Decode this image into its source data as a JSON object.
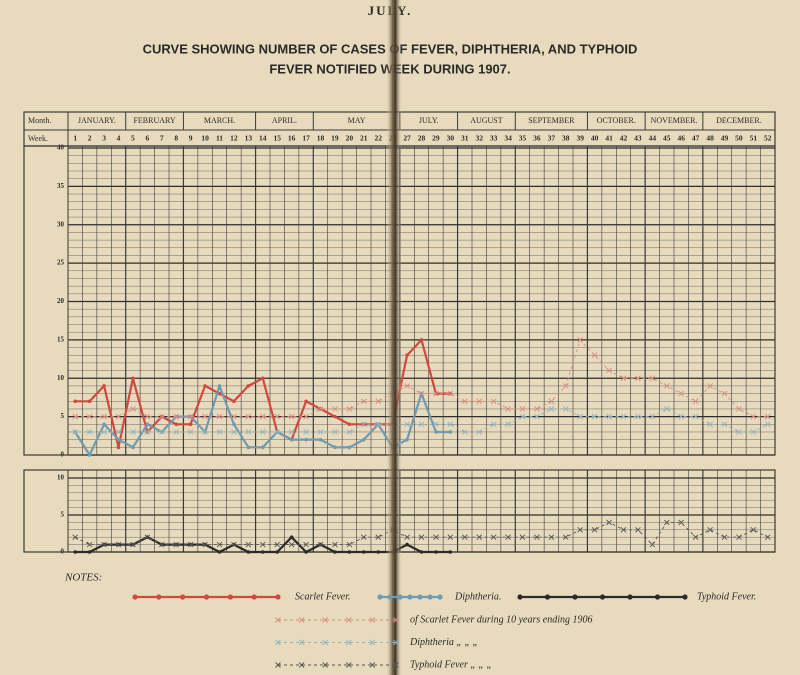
{
  "page_header": "JULY.",
  "notes_label": "NOTES:",
  "month_label": "Month.",
  "week_label": "Week.",
  "calendar": {
    "months": [
      {
        "label": "JANUARY.",
        "weeks": [
          1,
          2,
          3,
          4
        ]
      },
      {
        "label": "FEBRUARY",
        "weeks": [
          5,
          6,
          7,
          8
        ]
      },
      {
        "label": "MARCH.",
        "weeks": [
          9,
          10,
          11,
          12,
          13
        ]
      },
      {
        "label": "APRIL.",
        "weeks": [
          14,
          15,
          16,
          17
        ]
      },
      {
        "label": "MAY",
        "weeks": [
          18,
          19,
          20,
          21,
          22,
          23
        ]
      },
      {
        "label": "JULY.",
        "weeks": [
          27,
          28,
          29,
          30
        ]
      },
      {
        "label": "AUGUST",
        "weeks": [
          31,
          32,
          33,
          34
        ]
      },
      {
        "label": "SEPTEMBER",
        "weeks": [
          35,
          36,
          37,
          38,
          39
        ]
      },
      {
        "label": "OCTOBER.",
        "weeks": [
          40,
          41,
          42,
          43
        ]
      },
      {
        "label": "NOVEMBER.",
        "weeks": [
          44,
          45,
          46,
          47
        ]
      },
      {
        "label": "DECEMBER.",
        "weeks": [
          48,
          49,
          50,
          51,
          52
        ]
      }
    ]
  },
  "chart_data": [
    {
      "type": "line",
      "title": [
        "CURVE SHOWING NUMBER OF CASES OF FEVER, DIPHTHERIA, AND TYPHOID",
        "FEVER NOTIFIED WEEK DURING 1907."
      ],
      "ylim": [
        0,
        40
      ],
      "yticks": [
        0,
        5,
        10,
        15,
        20,
        25,
        30,
        35,
        40
      ],
      "series": [
        {
          "name": "Scarlet Fever.",
          "color": "#d2483f",
          "style": "solid",
          "values": [
            7,
            7,
            9,
            1,
            10,
            3,
            5,
            4,
            4,
            9,
            8,
            7,
            9,
            10,
            3,
            2,
            7,
            6,
            5,
            4,
            4,
            4,
            4,
            13,
            15,
            8,
            8,
            null,
            null,
            null,
            null,
            null,
            null,
            null,
            null,
            null,
            null,
            null,
            null,
            null,
            null,
            null,
            null,
            null,
            null,
            null,
            null,
            null,
            null
          ]
        },
        {
          "name": "Diphtheria.",
          "color": "#6f9bb0",
          "style": "solid",
          "values": [
            3,
            0,
            4,
            2,
            1,
            4,
            3,
            5,
            5,
            3,
            9,
            4,
            1,
            1,
            3,
            2,
            2,
            2,
            1,
            1,
            2,
            4,
            1,
            2,
            8,
            3,
            3,
            null,
            null,
            null,
            null,
            null,
            null,
            null,
            null,
            null,
            null,
            null,
            null,
            null,
            null,
            null,
            null,
            null,
            null,
            null,
            null,
            null,
            null
          ]
        },
        {
          "name": "of Scarlet Fever during 10 years ending 1906",
          "color": "#d98a80",
          "style": "dashed",
          "values": [
            5,
            5,
            5,
            5,
            6,
            5,
            5,
            5,
            5,
            5,
            5,
            5,
            5,
            5,
            5,
            5,
            5,
            6,
            6,
            6,
            7,
            7,
            8,
            9,
            8,
            8,
            8,
            7,
            7,
            7,
            6,
            6,
            6,
            7,
            9,
            15,
            13,
            11,
            10,
            10,
            10,
            9,
            8,
            7,
            9,
            8,
            6,
            5,
            5
          ]
        },
        {
          "name": "Diphtheria  „  „  „",
          "color": "#8fb3c2",
          "style": "dashed",
          "values": [
            3,
            3,
            3,
            3,
            3,
            3,
            3,
            3,
            3,
            3,
            3,
            3,
            3,
            3,
            3,
            3,
            3,
            3,
            3,
            3,
            4,
            4,
            4,
            4,
            4,
            4,
            4,
            3,
            3,
            4,
            4,
            5,
            5,
            6,
            6,
            5,
            5,
            5,
            5,
            5,
            5,
            6,
            5,
            5,
            4,
            4,
            3,
            3,
            4
          ]
        }
      ]
    },
    {
      "type": "line",
      "ylim": [
        0,
        10
      ],
      "yticks": [
        0,
        5,
        10
      ],
      "series": [
        {
          "name": "Typhoid Fever.",
          "color": "#2b2b2b",
          "style": "solid",
          "values": [
            0,
            0,
            1,
            1,
            1,
            2,
            1,
            1,
            1,
            1,
            0,
            1,
            0,
            0,
            0,
            2,
            0,
            1,
            0,
            0,
            0,
            0,
            0,
            1,
            0,
            0,
            0,
            null,
            null,
            null,
            null,
            null,
            null,
            null,
            null,
            null,
            null,
            null,
            null,
            null,
            null,
            null,
            null,
            null,
            null,
            null,
            null,
            null,
            null
          ]
        },
        {
          "name": "Typhoid Fever  „  „  „",
          "color": "#555555",
          "style": "dashed",
          "values": [
            2,
            1,
            1,
            1,
            1,
            2,
            1,
            1,
            1,
            1,
            1,
            1,
            1,
            1,
            1,
            1,
            1,
            1,
            1,
            1,
            2,
            2,
            3,
            2,
            2,
            2,
            2,
            2,
            2,
            2,
            2,
            2,
            2,
            2,
            2,
            3,
            3,
            4,
            3,
            3,
            1,
            4,
            4,
            2,
            3,
            2,
            2,
            3,
            2
          ]
        }
      ]
    }
  ]
}
